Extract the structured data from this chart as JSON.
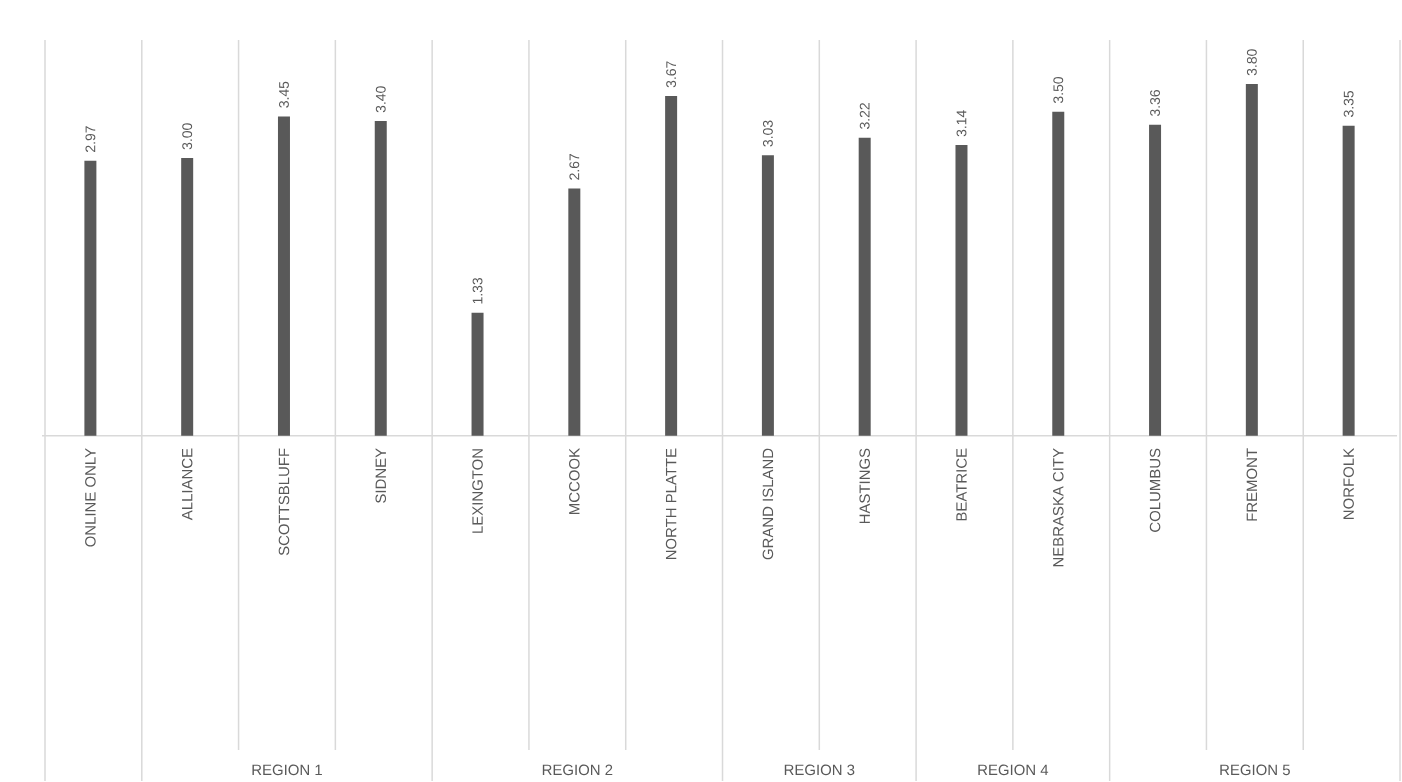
{
  "chart_data": {
    "type": "bar",
    "categories": [
      "ONLINE ONLY",
      "ALLIANCE",
      "SCOTTSBLUFF",
      "SIDNEY",
      "LEXINGTON",
      "MCCOOK",
      "NORTH PLATTE",
      "GRAND ISLAND",
      "HASTINGS",
      "BEATRICE",
      "NEBRASKA CITY",
      "COLUMBUS",
      "FREMONT",
      "NORFOLK"
    ],
    "values": [
      2.97,
      3.0,
      3.45,
      3.4,
      1.33,
      2.67,
      3.67,
      3.03,
      3.22,
      3.14,
      3.5,
      3.36,
      3.8,
      3.35
    ],
    "color": "#595959",
    "value_labels": [
      "2.97",
      "3.00",
      "3.45",
      "3.40",
      "1.33",
      "2.67",
      "3.67",
      "3.03",
      "3.22",
      "3.14",
      "3.50",
      "3.36",
      "3.80",
      "3.35"
    ],
    "grid": "x",
    "annotations": [
      "REGION 1",
      "REGION 2",
      "REGION 3",
      "REGION 4",
      "REGION 5"
    ]
  }
}
